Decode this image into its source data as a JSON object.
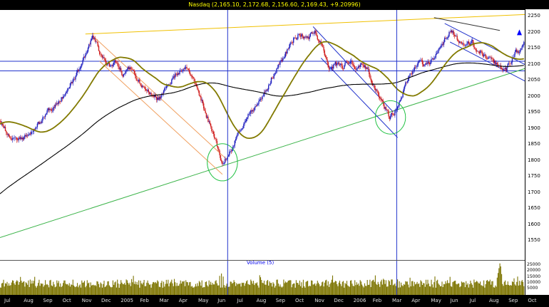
{
  "header": {
    "title": "Nasdaq (2,165.10, 2,172.68, 2,156.60, 2,169.43, +9.20996)"
  },
  "colors": {
    "frame_bg": "#000000",
    "pane_bg": "#ffffff",
    "title_text": "#ffff00",
    "candle_up": "#2222c0",
    "candle_down": "#d02020",
    "ma_fast": "#827a00",
    "ma_slow": "#000000",
    "volume_bar": "#7c7400",
    "axis_text": "#000000",
    "date_text": "#e0e0e0",
    "volume_label_text": "#0000ee",
    "resistance_line": "#f0c000",
    "support_line": "#3cb44a",
    "channel_left": "#f0a060",
    "channel_blue": "#2233cc",
    "ellipse": "#22c244",
    "minor_line": "#303030"
  },
  "price_axis": {
    "ticks": [
      "2250",
      "2200",
      "2150",
      "2100",
      "2050",
      "2000",
      "1950",
      "1900",
      "1850",
      "1800",
      "1750",
      "1700",
      "1650",
      "1600",
      "1550"
    ]
  },
  "volume": {
    "label": "Volume (5)",
    "ticks": [
      "25000",
      "20000",
      "15000",
      "10000",
      "5000"
    ],
    "max": 27000
  },
  "date_axis": {
    "labels": [
      "Jul",
      "Aug",
      "Sep",
      "Oct",
      "Nov",
      "Dec",
      "2005",
      "Feb",
      "Mar",
      "Apr",
      "May",
      "Jun",
      "Jul",
      "Aug",
      "Sep",
      "Oct",
      "Nov",
      "Dec",
      "2006",
      "Feb",
      "Mar",
      "Apr",
      "May",
      "Jun",
      "Jul",
      "Aug",
      "Sep",
      "Oct"
    ]
  },
  "chart_data": {
    "type": "candlestick",
    "title": "Nasdaq",
    "last_quote": {
      "open": 2165.1,
      "high": 2172.68,
      "low": 2156.6,
      "close": 2169.43,
      "change": 9.20996
    },
    "price_range": [
      1550,
      2250
    ],
    "days": 590,
    "seed": 1013,
    "ma_periods": [
      50,
      200
    ],
    "grid": false,
    "legend": false,
    "close_anchors": [
      [
        -210,
        1430
      ],
      [
        -170,
        1500
      ],
      [
        -130,
        1600
      ],
      [
        -90,
        1720
      ],
      [
        -60,
        1810
      ],
      [
        -30,
        1915
      ],
      [
        -10,
        1960
      ],
      [
        0,
        1915
      ],
      [
        12,
        1872
      ],
      [
        24,
        1862
      ],
      [
        36,
        1902
      ],
      [
        48,
        1935
      ],
      [
        60,
        1972
      ],
      [
        72,
        2012
      ],
      [
        84,
        2062
      ],
      [
        96,
        2140
      ],
      [
        104,
        2188
      ],
      [
        112,
        2128
      ],
      [
        120,
        2088
      ],
      [
        129,
        2112
      ],
      [
        137,
        2068
      ],
      [
        145,
        2092
      ],
      [
        157,
        2042
      ],
      [
        169,
        2012
      ],
      [
        177,
        1988
      ],
      [
        189,
        2042
      ],
      [
        201,
        2082
      ],
      [
        209,
        2092
      ],
      [
        217,
        2052
      ],
      [
        225,
        1992
      ],
      [
        237,
        1892
      ],
      [
        249,
        1790
      ],
      [
        257,
        1822
      ],
      [
        269,
        1902
      ],
      [
        281,
        1952
      ],
      [
        293,
        1992
      ],
      [
        305,
        2062
      ],
      [
        317,
        2122
      ],
      [
        329,
        2182
      ],
      [
        337,
        2196
      ],
      [
        345,
        2172
      ],
      [
        353,
        2212
      ],
      [
        361,
        2152
      ],
      [
        369,
        2082
      ],
      [
        377,
        2102
      ],
      [
        385,
        2092
      ],
      [
        393,
        2112
      ],
      [
        401,
        2082
      ],
      [
        409,
        2102
      ],
      [
        417,
        2052
      ],
      [
        425,
        2002
      ],
      [
        437,
        1934
      ],
      [
        445,
        1962
      ],
      [
        457,
        2052
      ],
      [
        469,
        2112
      ],
      [
        477,
        2092
      ],
      [
        485,
        2112
      ],
      [
        493,
        2152
      ],
      [
        505,
        2206
      ],
      [
        513,
        2182
      ],
      [
        521,
        2152
      ],
      [
        529,
        2172
      ],
      [
        537,
        2142
      ],
      [
        545,
        2122
      ],
      [
        553,
        2112
      ],
      [
        561,
        2092
      ],
      [
        567,
        2072
      ],
      [
        573,
        2112
      ],
      [
        581,
        2142
      ],
      [
        589,
        2169
      ]
    ],
    "trendlines": [
      {
        "name": "resistance",
        "color": "#f0c000",
        "width": 1,
        "points": [
          [
            96,
            2195
          ],
          [
            600,
            2257
          ]
        ]
      },
      {
        "name": "support",
        "color": "#3cb44a",
        "width": 1,
        "points": [
          [
            0,
            1560
          ],
          [
            600,
            2096
          ]
        ]
      },
      {
        "name": "down-channel-1a",
        "color": "#f0a060",
        "width": 1,
        "points": [
          [
            104,
            2190
          ],
          [
            254,
            1806
          ]
        ]
      },
      {
        "name": "down-channel-1b",
        "color": "#f0a060",
        "width": 1,
        "points": [
          [
            112,
            2110
          ],
          [
            250,
            1757
          ]
        ]
      },
      {
        "name": "down-channel-2a",
        "color": "#2233cc",
        "width": 1,
        "points": [
          [
            352,
            2218
          ],
          [
            442,
            1952
          ]
        ]
      },
      {
        "name": "down-channel-2b",
        "color": "#2233cc",
        "width": 1,
        "points": [
          [
            361,
            2120
          ],
          [
            447,
            1872
          ]
        ]
      },
      {
        "name": "down-channel-3a",
        "color": "#2233cc",
        "width": 1,
        "points": [
          [
            500,
            2228
          ],
          [
            600,
            2086
          ]
        ]
      },
      {
        "name": "down-channel-3b",
        "color": "#2233cc",
        "width": 1,
        "points": [
          [
            506,
            2170
          ],
          [
            600,
            2034
          ]
        ]
      },
      {
        "name": "minor-top",
        "color": "#303030",
        "width": 1,
        "points": [
          [
            488,
            2246
          ],
          [
            562,
            2206
          ]
        ]
      }
    ],
    "hlines": [
      {
        "price": 2110,
        "color": "#2233cc"
      },
      {
        "price": 2080,
        "color": "#2233cc"
      }
    ],
    "vlines": [
      {
        "day": 256,
        "color": "#2233cc"
      },
      {
        "day": 446,
        "color": "#2233cc"
      }
    ],
    "ellipses": [
      {
        "day": 250,
        "price": 1795,
        "rx_days": 17,
        "ry_points": 58,
        "color": "#22c244"
      },
      {
        "day": 439,
        "price": 1935,
        "rx_days": 17,
        "ry_points": 52,
        "color": "#22c244"
      }
    ],
    "markers": [
      {
        "day": 584,
        "price": 2198,
        "type": "arrow-up",
        "color": "#0000ff"
      }
    ],
    "volume_spikes": {
      "247": 16000,
      "249": 18000,
      "251": 15500,
      "559": 14500,
      "560": 18500,
      "561": 22500,
      "562": 26500,
      "563": 24000,
      "564": 17500
    }
  }
}
